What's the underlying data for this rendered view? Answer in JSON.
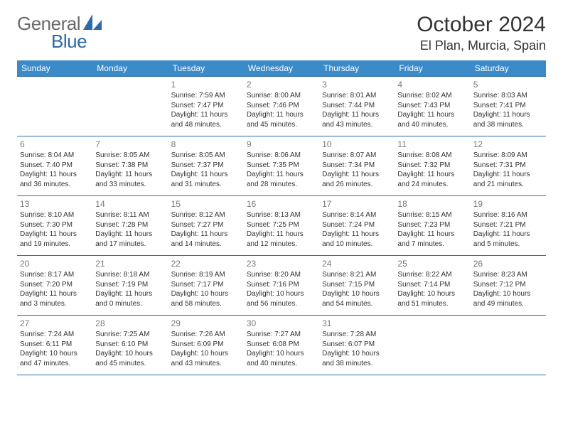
{
  "brand": {
    "word1": "General",
    "word2": "Blue"
  },
  "title": {
    "month": "October 2024",
    "location": "El Plan, Murcia, Spain"
  },
  "columns": [
    "Sunday",
    "Monday",
    "Tuesday",
    "Wednesday",
    "Thursday",
    "Friday",
    "Saturday"
  ],
  "colors": {
    "header_bg": "#3b8bc9",
    "header_fg": "#ffffff",
    "rule": "#2e6da4",
    "daynum": "#7a7a7a",
    "text": "#333333"
  },
  "weeks": [
    [
      null,
      null,
      {
        "n": "1",
        "sr": "Sunrise: 7:59 AM",
        "ss": "Sunset: 7:47 PM",
        "d1": "Daylight: 11 hours",
        "d2": "and 48 minutes."
      },
      {
        "n": "2",
        "sr": "Sunrise: 8:00 AM",
        "ss": "Sunset: 7:46 PM",
        "d1": "Daylight: 11 hours",
        "d2": "and 45 minutes."
      },
      {
        "n": "3",
        "sr": "Sunrise: 8:01 AM",
        "ss": "Sunset: 7:44 PM",
        "d1": "Daylight: 11 hours",
        "d2": "and 43 minutes."
      },
      {
        "n": "4",
        "sr": "Sunrise: 8:02 AM",
        "ss": "Sunset: 7:43 PM",
        "d1": "Daylight: 11 hours",
        "d2": "and 40 minutes."
      },
      {
        "n": "5",
        "sr": "Sunrise: 8:03 AM",
        "ss": "Sunset: 7:41 PM",
        "d1": "Daylight: 11 hours",
        "d2": "and 38 minutes."
      }
    ],
    [
      {
        "n": "6",
        "sr": "Sunrise: 8:04 AM",
        "ss": "Sunset: 7:40 PM",
        "d1": "Daylight: 11 hours",
        "d2": "and 36 minutes."
      },
      {
        "n": "7",
        "sr": "Sunrise: 8:05 AM",
        "ss": "Sunset: 7:38 PM",
        "d1": "Daylight: 11 hours",
        "d2": "and 33 minutes."
      },
      {
        "n": "8",
        "sr": "Sunrise: 8:05 AM",
        "ss": "Sunset: 7:37 PM",
        "d1": "Daylight: 11 hours",
        "d2": "and 31 minutes."
      },
      {
        "n": "9",
        "sr": "Sunrise: 8:06 AM",
        "ss": "Sunset: 7:35 PM",
        "d1": "Daylight: 11 hours",
        "d2": "and 28 minutes."
      },
      {
        "n": "10",
        "sr": "Sunrise: 8:07 AM",
        "ss": "Sunset: 7:34 PM",
        "d1": "Daylight: 11 hours",
        "d2": "and 26 minutes."
      },
      {
        "n": "11",
        "sr": "Sunrise: 8:08 AM",
        "ss": "Sunset: 7:32 PM",
        "d1": "Daylight: 11 hours",
        "d2": "and 24 minutes."
      },
      {
        "n": "12",
        "sr": "Sunrise: 8:09 AM",
        "ss": "Sunset: 7:31 PM",
        "d1": "Daylight: 11 hours",
        "d2": "and 21 minutes."
      }
    ],
    [
      {
        "n": "13",
        "sr": "Sunrise: 8:10 AM",
        "ss": "Sunset: 7:30 PM",
        "d1": "Daylight: 11 hours",
        "d2": "and 19 minutes."
      },
      {
        "n": "14",
        "sr": "Sunrise: 8:11 AM",
        "ss": "Sunset: 7:28 PM",
        "d1": "Daylight: 11 hours",
        "d2": "and 17 minutes."
      },
      {
        "n": "15",
        "sr": "Sunrise: 8:12 AM",
        "ss": "Sunset: 7:27 PM",
        "d1": "Daylight: 11 hours",
        "d2": "and 14 minutes."
      },
      {
        "n": "16",
        "sr": "Sunrise: 8:13 AM",
        "ss": "Sunset: 7:25 PM",
        "d1": "Daylight: 11 hours",
        "d2": "and 12 minutes."
      },
      {
        "n": "17",
        "sr": "Sunrise: 8:14 AM",
        "ss": "Sunset: 7:24 PM",
        "d1": "Daylight: 11 hours",
        "d2": "and 10 minutes."
      },
      {
        "n": "18",
        "sr": "Sunrise: 8:15 AM",
        "ss": "Sunset: 7:23 PM",
        "d1": "Daylight: 11 hours",
        "d2": "and 7 minutes."
      },
      {
        "n": "19",
        "sr": "Sunrise: 8:16 AM",
        "ss": "Sunset: 7:21 PM",
        "d1": "Daylight: 11 hours",
        "d2": "and 5 minutes."
      }
    ],
    [
      {
        "n": "20",
        "sr": "Sunrise: 8:17 AM",
        "ss": "Sunset: 7:20 PM",
        "d1": "Daylight: 11 hours",
        "d2": "and 3 minutes."
      },
      {
        "n": "21",
        "sr": "Sunrise: 8:18 AM",
        "ss": "Sunset: 7:19 PM",
        "d1": "Daylight: 11 hours",
        "d2": "and 0 minutes."
      },
      {
        "n": "22",
        "sr": "Sunrise: 8:19 AM",
        "ss": "Sunset: 7:17 PM",
        "d1": "Daylight: 10 hours",
        "d2": "and 58 minutes."
      },
      {
        "n": "23",
        "sr": "Sunrise: 8:20 AM",
        "ss": "Sunset: 7:16 PM",
        "d1": "Daylight: 10 hours",
        "d2": "and 56 minutes."
      },
      {
        "n": "24",
        "sr": "Sunrise: 8:21 AM",
        "ss": "Sunset: 7:15 PM",
        "d1": "Daylight: 10 hours",
        "d2": "and 54 minutes."
      },
      {
        "n": "25",
        "sr": "Sunrise: 8:22 AM",
        "ss": "Sunset: 7:14 PM",
        "d1": "Daylight: 10 hours",
        "d2": "and 51 minutes."
      },
      {
        "n": "26",
        "sr": "Sunrise: 8:23 AM",
        "ss": "Sunset: 7:12 PM",
        "d1": "Daylight: 10 hours",
        "d2": "and 49 minutes."
      }
    ],
    [
      {
        "n": "27",
        "sr": "Sunrise: 7:24 AM",
        "ss": "Sunset: 6:11 PM",
        "d1": "Daylight: 10 hours",
        "d2": "and 47 minutes."
      },
      {
        "n": "28",
        "sr": "Sunrise: 7:25 AM",
        "ss": "Sunset: 6:10 PM",
        "d1": "Daylight: 10 hours",
        "d2": "and 45 minutes."
      },
      {
        "n": "29",
        "sr": "Sunrise: 7:26 AM",
        "ss": "Sunset: 6:09 PM",
        "d1": "Daylight: 10 hours",
        "d2": "and 43 minutes."
      },
      {
        "n": "30",
        "sr": "Sunrise: 7:27 AM",
        "ss": "Sunset: 6:08 PM",
        "d1": "Daylight: 10 hours",
        "d2": "and 40 minutes."
      },
      {
        "n": "31",
        "sr": "Sunrise: 7:28 AM",
        "ss": "Sunset: 6:07 PM",
        "d1": "Daylight: 10 hours",
        "d2": "and 38 minutes."
      },
      null,
      null
    ]
  ]
}
